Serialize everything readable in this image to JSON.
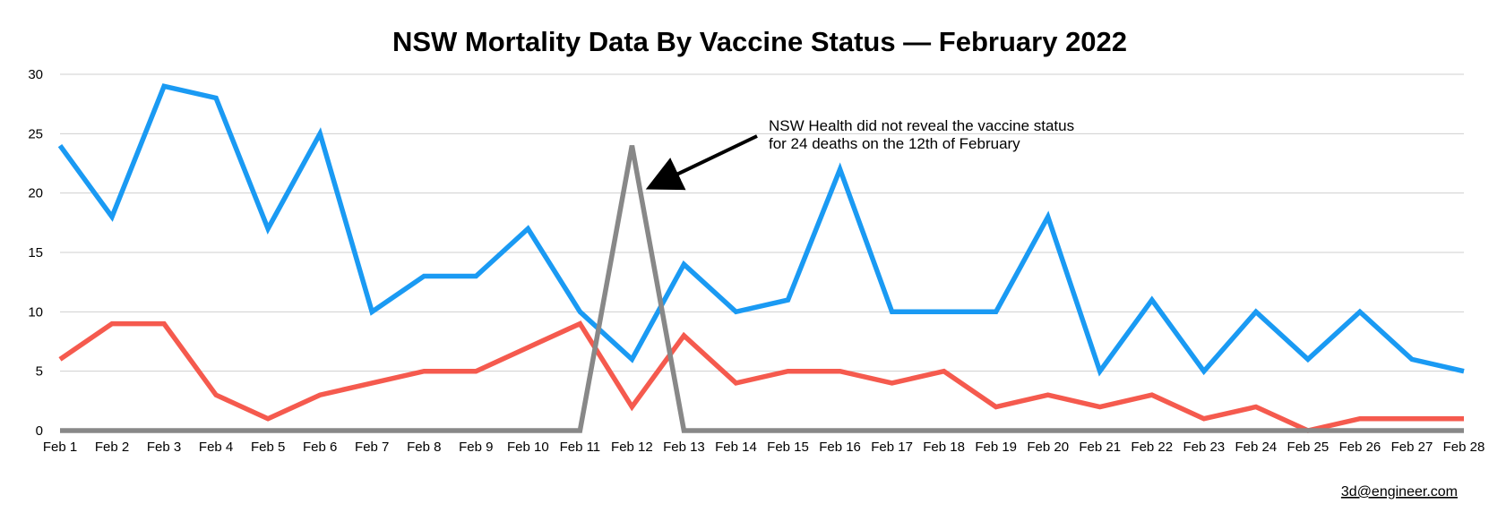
{
  "chart_data": {
    "type": "line",
    "title": "NSW Mortality Data By Vaccine Status — February 2022",
    "xlabel": "",
    "ylabel": "",
    "ylim": [
      0,
      30
    ],
    "yticks": [
      0,
      5,
      10,
      15,
      20,
      25,
      30
    ],
    "grid": true,
    "categories": [
      "Feb 1",
      "Feb 2",
      "Feb 3",
      "Feb 4",
      "Feb 5",
      "Feb 6",
      "Feb 7",
      "Feb 8",
      "Feb 9",
      "Feb 10",
      "Feb 11",
      "Feb 12",
      "Feb 13",
      "Feb 14",
      "Feb 15",
      "Feb 16",
      "Feb 17",
      "Feb 18",
      "Feb 19",
      "Feb 20",
      "Feb 21",
      "Feb 22",
      "Feb 23",
      "Feb 24",
      "Feb 25",
      "Feb 26",
      "Feb 27",
      "Feb 28"
    ],
    "series": [
      {
        "color": "#1a9af3",
        "values": [
          24,
          18,
          29,
          28,
          17,
          25,
          10,
          13,
          13,
          17,
          10,
          6,
          14,
          10,
          11,
          22,
          10,
          10,
          10,
          18,
          5,
          11,
          5,
          10,
          6,
          10,
          6,
          5
        ]
      },
      {
        "color": "#f55a4e",
        "values": [
          6,
          9,
          9,
          3,
          1,
          3,
          4,
          5,
          5,
          7,
          9,
          2,
          8,
          4,
          5,
          5,
          4,
          5,
          2,
          3,
          2,
          3,
          1,
          2,
          0,
          1,
          1,
          1
        ]
      },
      {
        "color": "#888888",
        "values": [
          0,
          0,
          0,
          0,
          0,
          0,
          0,
          0,
          0,
          0,
          0,
          24,
          0,
          0,
          0,
          0,
          0,
          0,
          0,
          0,
          0,
          0,
          0,
          0,
          0,
          0,
          0,
          0
        ]
      }
    ],
    "annotation": {
      "lines": [
        "NSW Health did not reveal the vaccine status",
        "for 24 deaths on the 12th of February"
      ]
    }
  },
  "credit": "3d@engineer.com"
}
